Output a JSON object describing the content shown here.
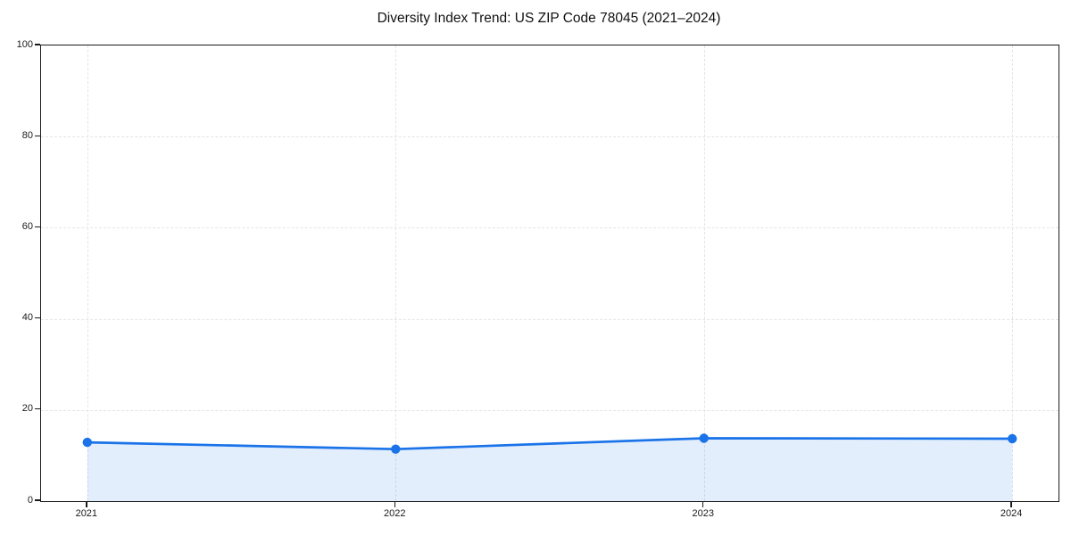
{
  "figure": {
    "background": "#ffffff"
  },
  "chart_data": {
    "type": "area",
    "title": "Diversity Index Trend: US ZIP Code 78045 (2021–2024)",
    "x": [
      2021,
      2022,
      2023,
      2024
    ],
    "x_tick_labels": [
      "2021",
      "2022",
      "2023",
      "2024"
    ],
    "values": [
      12.9,
      11.4,
      13.8,
      13.7
    ],
    "y_ticks": [
      0,
      20,
      40,
      60,
      80,
      100
    ],
    "y_tick_labels": [
      "0",
      "20",
      "40",
      "60",
      "80",
      "100"
    ],
    "xlim": [
      2020.85,
      2024.15
    ],
    "ylim": [
      0,
      100
    ],
    "xlabel": "",
    "ylabel": "",
    "grid": true,
    "legend": false,
    "marker": "circle",
    "line_color": "#1a73e8",
    "fill_color": "rgba(26,115,232,0.12)",
    "grid_color": "#e4e4e4",
    "axis_color": "#1a1a1a",
    "text_color": "#111111"
  }
}
